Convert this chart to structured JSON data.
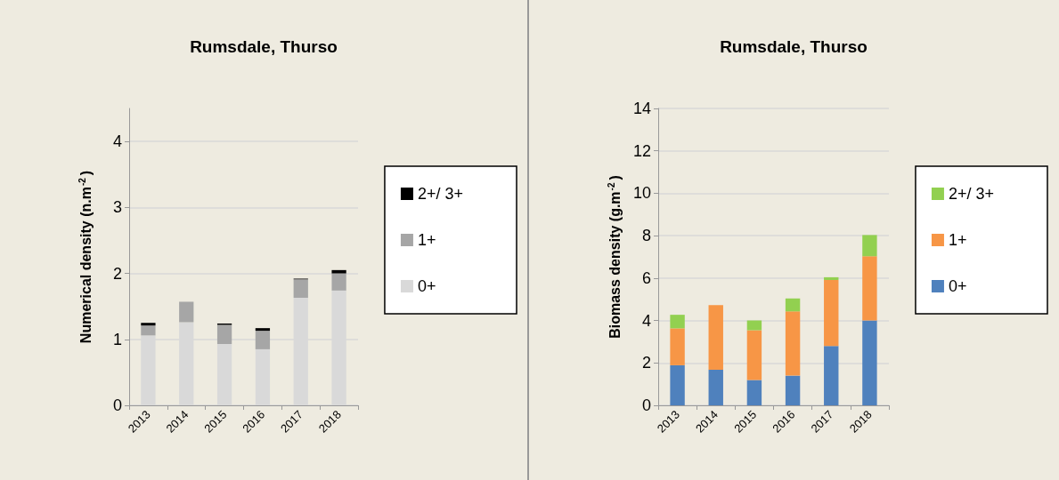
{
  "chart_data": [
    {
      "type": "bar",
      "title": "Rumsdale, Thurso",
      "ylabel": "Numerical density (n.m$^{-2}$)",
      "categories": [
        "2013",
        "2014",
        "2015",
        "2016",
        "2017",
        "2018"
      ],
      "stacked": true,
      "ylim": [
        0,
        4.5
      ],
      "yticks": [
        0,
        1,
        2,
        3,
        4
      ],
      "grid": "y",
      "legend": "right",
      "series": [
        {
          "name": "0+",
          "color": "#d9d9d9",
          "values": [
            1.06,
            1.26,
            0.93,
            0.85,
            1.63,
            1.74
          ]
        },
        {
          "name": "1+",
          "color": "#a6a6a6",
          "values": [
            0.15,
            0.31,
            0.29,
            0.28,
            0.28,
            0.26
          ]
        },
        {
          "name": "2+/ 3+",
          "color": "#000000",
          "values": [
            0.04,
            0,
            0.02,
            0.04,
            0.01,
            0.05
          ]
        }
      ]
    },
    {
      "type": "bar",
      "title": "Rumsdale, Thurso",
      "ylabel": "Biomass density (g.m$^{-2}$)",
      "categories": [
        "2013",
        "2014",
        "2015",
        "2016",
        "2017",
        "2018"
      ],
      "stacked": true,
      "ylim": [
        0,
        14
      ],
      "yticks": [
        0,
        2,
        4,
        6,
        8,
        10,
        12,
        14
      ],
      "grid": "y",
      "legend": "right",
      "series": [
        {
          "name": "0+",
          "color": "#4f81bd",
          "values": [
            1.89,
            1.68,
            1.19,
            1.4,
            2.8,
            4.0
          ]
        },
        {
          "name": "1+",
          "color": "#f79646",
          "values": [
            1.74,
            3.05,
            2.35,
            3.03,
            3.11,
            3.03
          ]
        },
        {
          "name": "2+/ 3+",
          "color": "#92d050",
          "values": [
            0.64,
            0,
            0.46,
            0.61,
            0.13,
            1.0
          ]
        }
      ]
    }
  ]
}
